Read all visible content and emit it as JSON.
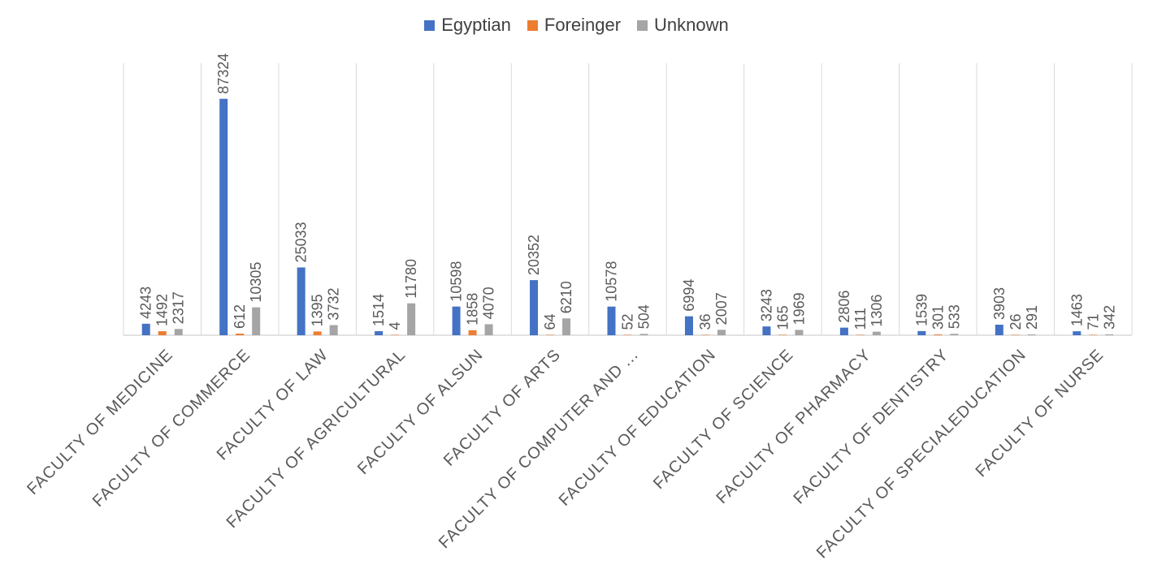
{
  "chart_data": {
    "type": "bar",
    "categories": [
      "FACULTY OF MEDICINE",
      "FACULTY OF COMMERCE",
      "FACULTY OF LAW",
      "FACULTY OF AGRICULTURAL",
      "FACULTY OF ALSUN",
      "FACULTY OF ARTS",
      "FACULTY OF COMPUTER AND ...",
      "FACULTY OF EDUCATION",
      "FACULTY OF SCIENCE",
      "FACULTY OF PHARMACY",
      "FACULTY OF DENTISTRY",
      "FACULTY OF SPECIALEDUCATION",
      "FACULTY OF NURSE"
    ],
    "series": [
      {
        "name": "Egyptian",
        "color": "#4472C4",
        "values": [
          4243,
          87324,
          25033,
          1514,
          10598,
          20352,
          10578,
          6994,
          3243,
          2806,
          1539,
          3903,
          1463
        ]
      },
      {
        "name": "Foreinger",
        "color": "#ED7D31",
        "values": [
          1492,
          612,
          1395,
          4,
          1858,
          64,
          52,
          36,
          165,
          111,
          301,
          26,
          71
        ]
      },
      {
        "name": "Unknown",
        "color": "#A5A5A5",
        "values": [
          2317,
          10305,
          3732,
          11780,
          4070,
          6210,
          504,
          2007,
          1969,
          1306,
          533,
          291,
          342
        ]
      }
    ],
    "title": "",
    "xlabel": "",
    "ylabel": "",
    "ylim": [
      0,
      100000
    ],
    "grid": "vertical category dividers",
    "legend_position": "top-center",
    "data_labels": true
  }
}
